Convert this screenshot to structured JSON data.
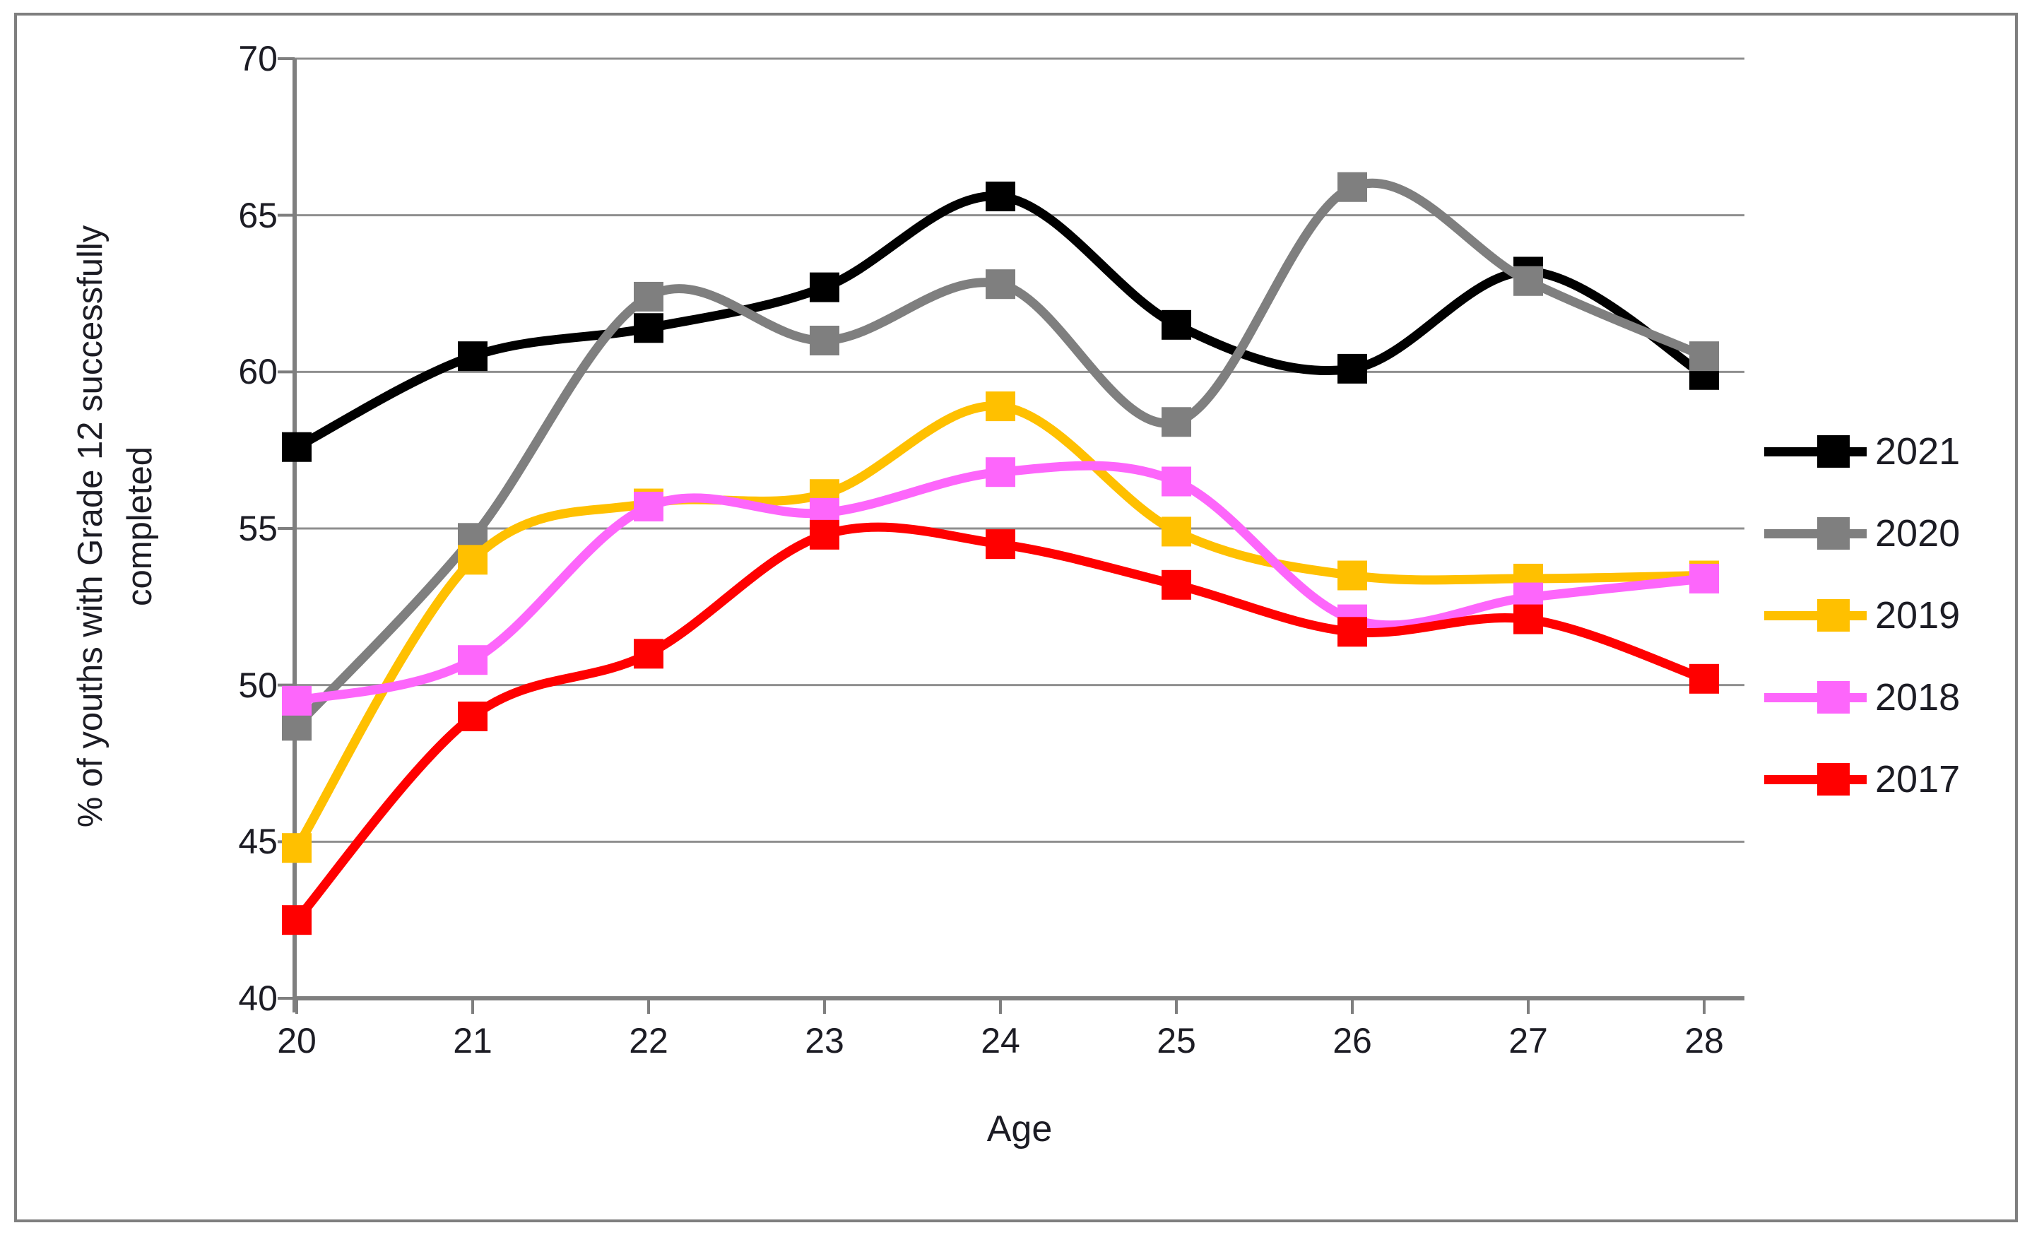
{
  "chart_data": {
    "type": "line",
    "line_style": "smooth",
    "marker": "square",
    "title": "",
    "xlabel": "Age",
    "ylabel": "% of youths with Grade 12 successfully completed",
    "ylabel_lines": [
      "% of youths with Grade 12 successfully",
      "completed"
    ],
    "x": [
      20,
      21,
      22,
      23,
      24,
      25,
      26,
      27,
      28
    ],
    "y_ticks": [
      40,
      45,
      50,
      55,
      60,
      65,
      70
    ],
    "ylim": [
      40,
      70
    ],
    "grid": true,
    "legend_position": "right",
    "series": [
      {
        "name": "2021",
        "color": "#000000",
        "values": [
          57.6,
          60.5,
          61.4,
          62.7,
          65.6,
          61.5,
          60.1,
          63.2,
          59.9
        ]
      },
      {
        "name": "2020",
        "color": "#7F7F7F",
        "values": [
          48.7,
          54.7,
          62.4,
          61.0,
          62.8,
          58.4,
          65.9,
          62.9,
          60.5
        ]
      },
      {
        "name": "2019",
        "color": "#FFC000",
        "values": [
          44.8,
          54.0,
          55.8,
          56.1,
          58.9,
          54.9,
          53.5,
          53.4,
          53.5
        ]
      },
      {
        "name": "2018",
        "color": "#FD66FB",
        "values": [
          49.5,
          50.8,
          55.7,
          55.5,
          56.8,
          56.5,
          52.1,
          52.8,
          53.4
        ]
      },
      {
        "name": "2017",
        "color": "#FF0000",
        "values": [
          42.5,
          49.0,
          51.0,
          54.8,
          54.5,
          53.2,
          51.7,
          52.1,
          50.2
        ]
      }
    ]
  },
  "frame": {
    "background": "#FFFFFF",
    "border_color": "#7F7F7F"
  },
  "axes": {
    "grid_color": "#8F8F8F",
    "axis_color": "#7F7F7F",
    "text_color": "#1C1C24"
  }
}
